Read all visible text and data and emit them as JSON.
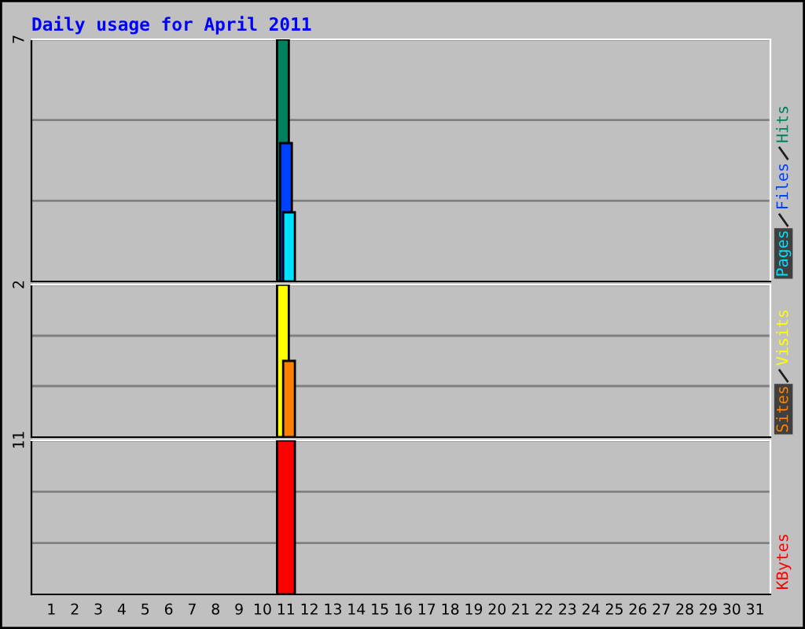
{
  "chart_data": [
    {
      "type": "bar",
      "title": "Daily usage for April 2011",
      "categories": [
        "1",
        "2",
        "3",
        "4",
        "5",
        "6",
        "7",
        "8",
        "9",
        "10",
        "11",
        "12",
        "13",
        "14",
        "15",
        "16",
        "17",
        "18",
        "19",
        "20",
        "21",
        "22",
        "23",
        "24",
        "25",
        "26",
        "27",
        "28",
        "29",
        "30",
        "31"
      ],
      "series": [
        {
          "name": "Hits",
          "color": "#00805c",
          "values": [
            null,
            null,
            null,
            null,
            null,
            null,
            null,
            null,
            null,
            null,
            7,
            null,
            null,
            null,
            null,
            null,
            null,
            null,
            null,
            null,
            null,
            null,
            null,
            null,
            null,
            null,
            null,
            null,
            null,
            null,
            null
          ]
        },
        {
          "name": "Files",
          "color": "#0040ff",
          "values": [
            null,
            null,
            null,
            null,
            null,
            null,
            null,
            null,
            null,
            null,
            4,
            null,
            null,
            null,
            null,
            null,
            null,
            null,
            null,
            null,
            null,
            null,
            null,
            null,
            null,
            null,
            null,
            null,
            null,
            null,
            null
          ]
        },
        {
          "name": "Pages",
          "color": "#00e0ff",
          "values": [
            null,
            null,
            null,
            null,
            null,
            null,
            null,
            null,
            null,
            null,
            2,
            null,
            null,
            null,
            null,
            null,
            null,
            null,
            null,
            null,
            null,
            null,
            null,
            null,
            null,
            null,
            null,
            null,
            null,
            null,
            null
          ]
        }
      ],
      "ylim": [
        0,
        7
      ],
      "yticks": [
        {
          "value": 2.33,
          "label": null
        },
        {
          "value": 4.67,
          "label": null
        },
        7
      ],
      "grid": "y",
      "tick_labels": "y"
    },
    {
      "type": "bar",
      "categories": [
        "1",
        "2",
        "3",
        "4",
        "5",
        "6",
        "7",
        "8",
        "9",
        "10",
        "11",
        "12",
        "13",
        "14",
        "15",
        "16",
        "17",
        "18",
        "19",
        "20",
        "21",
        "22",
        "23",
        "24",
        "25",
        "26",
        "27",
        "28",
        "29",
        "30",
        "31"
      ],
      "series": [
        {
          "name": "Visits",
          "color": "#ffff00",
          "values": [
            null,
            null,
            null,
            null,
            null,
            null,
            null,
            null,
            null,
            null,
            2,
            null,
            null,
            null,
            null,
            null,
            null,
            null,
            null,
            null,
            null,
            null,
            null,
            null,
            null,
            null,
            null,
            null,
            null,
            null,
            null
          ]
        },
        {
          "name": "Sites",
          "color": "#ff8000",
          "values": [
            null,
            null,
            null,
            null,
            null,
            null,
            null,
            null,
            null,
            null,
            1,
            null,
            null,
            null,
            null,
            null,
            null,
            null,
            null,
            null,
            null,
            null,
            null,
            null,
            null,
            null,
            null,
            null,
            null,
            null,
            null
          ]
        }
      ],
      "ylim": [
        0,
        2
      ],
      "yticks": [
        {
          "value": 0.67,
          "label": null
        },
        {
          "value": 1.33,
          "label": null
        },
        2
      ],
      "grid": "y",
      "tick_labels": "y"
    },
    {
      "type": "bar",
      "categories": [
        "1",
        "2",
        "3",
        "4",
        "5",
        "6",
        "7",
        "8",
        "9",
        "10",
        "11",
        "12",
        "13",
        "14",
        "15",
        "16",
        "17",
        "18",
        "19",
        "20",
        "21",
        "22",
        "23",
        "24",
        "25",
        "26",
        "27",
        "28",
        "29",
        "30",
        "31"
      ],
      "series": [
        {
          "name": "KBytes",
          "color": "#ff0000",
          "values": [
            null,
            null,
            null,
            null,
            null,
            null,
            null,
            null,
            null,
            null,
            11,
            null,
            null,
            null,
            null,
            null,
            null,
            null,
            null,
            null,
            null,
            null,
            null,
            null,
            null,
            null,
            null,
            null,
            null,
            null,
            null
          ]
        }
      ],
      "ylim": [
        0,
        11
      ],
      "yticks": [
        {
          "value": 3.67,
          "label": null
        },
        {
          "value": 7.33,
          "label": null
        },
        11
      ],
      "grid": "y"
    }
  ]
}
